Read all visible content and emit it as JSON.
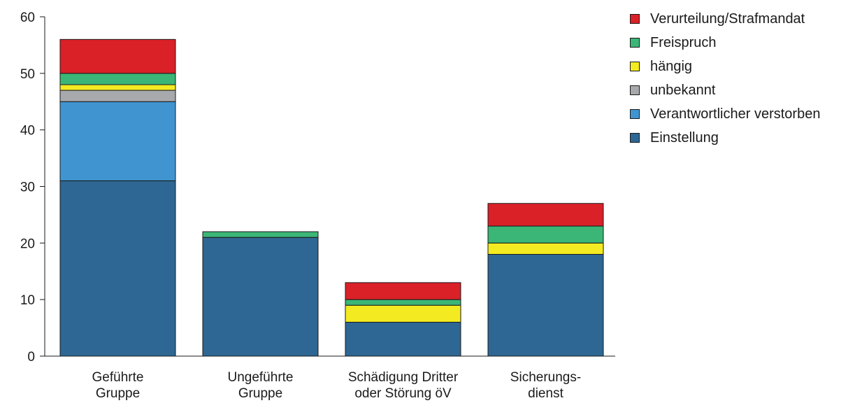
{
  "chart_data": {
    "type": "bar",
    "stacked": true,
    "title": "",
    "xlabel": "",
    "ylabel": "",
    "ylim": [
      0,
      60
    ],
    "yticks": [
      0,
      10,
      20,
      30,
      40,
      50,
      60
    ],
    "grid": false,
    "legend_position": "top-right",
    "categories": [
      [
        "Geführte",
        "Gruppe"
      ],
      [
        "Ungeführte",
        "Gruppe"
      ],
      [
        "Schädigung Dritter",
        "oder Störung öV"
      ],
      [
        "Sicherungs-",
        "dienst"
      ]
    ],
    "series": [
      {
        "name": "Einstellung",
        "color": "#2e6793",
        "values": [
          31,
          21,
          6,
          18
        ]
      },
      {
        "name": "Verantwortlicher verstorben",
        "color": "#4095d1",
        "values": [
          14,
          0,
          0,
          0
        ]
      },
      {
        "name": "unbekannt",
        "color": "#a7a9ac",
        "values": [
          2,
          0,
          0,
          0
        ]
      },
      {
        "name": "hängig",
        "color": "#f3ea21",
        "values": [
          1,
          0,
          3,
          2
        ]
      },
      {
        "name": "Freispruch",
        "color": "#3bb677",
        "values": [
          2,
          1,
          1,
          3
        ]
      },
      {
        "name": "Verurteilung/Strafmandat",
        "color": "#da2128",
        "values": [
          6,
          0,
          3,
          4
        ]
      }
    ]
  }
}
